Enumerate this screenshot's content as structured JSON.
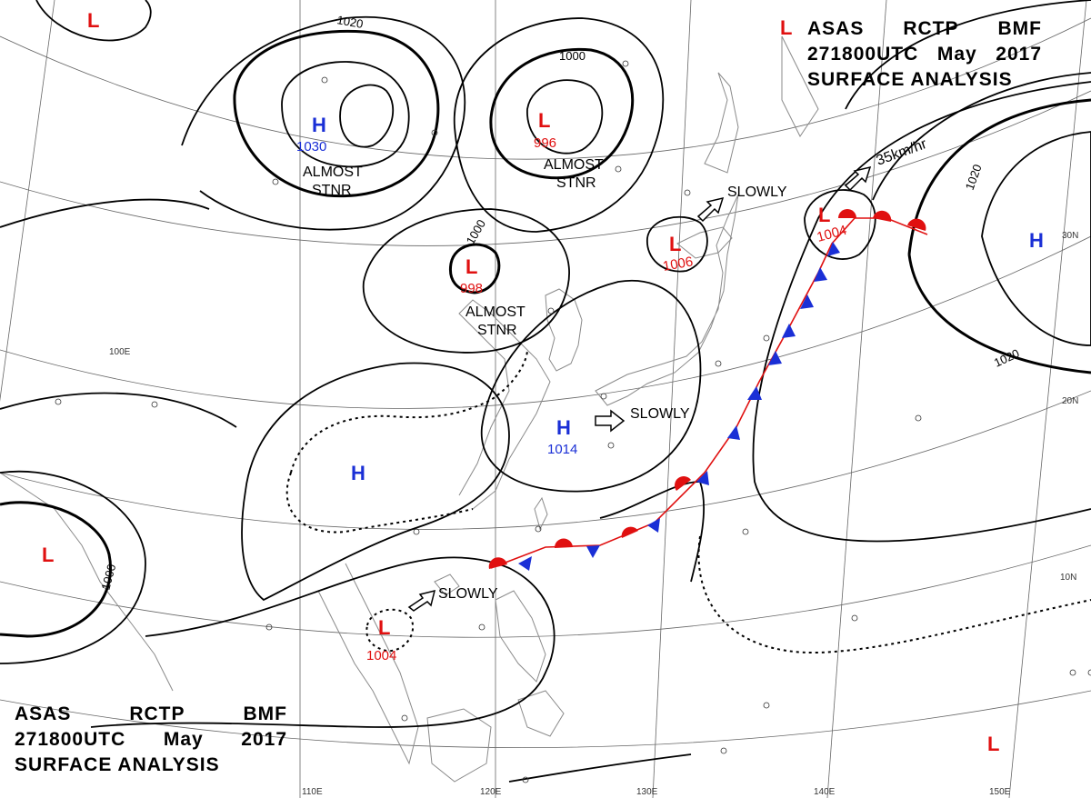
{
  "title_top": {
    "agency": "ASAS",
    "station": "RCTP",
    "office": "BMF",
    "time": "271800UTC",
    "month": "May",
    "year": "2017",
    "product": "SURFACE ANALYSIS"
  },
  "title_bottom": {
    "agency": "ASAS",
    "station": "RCTP",
    "office": "BMF",
    "time": "271800UTC",
    "month": "May",
    "year": "2017",
    "product": "SURFACE ANALYSIS"
  },
  "pressure_systems": [
    {
      "id": "h-mongolia",
      "type": "H",
      "value": "1030",
      "color": "#1a2fd6"
    },
    {
      "id": "h-china",
      "type": "H",
      "value": "",
      "color": "#1a2fd6"
    },
    {
      "id": "h-korea",
      "type": "H",
      "value": "1014",
      "color": "#1a2fd6"
    },
    {
      "id": "h-pacific",
      "type": "H",
      "value": "",
      "color": "#1a2fd6"
    },
    {
      "id": "l-northwest",
      "type": "L",
      "value": "",
      "color": "#e01010"
    },
    {
      "id": "l-manchuria",
      "type": "L",
      "value": "996",
      "color": "#e01010"
    },
    {
      "id": "l-bohai",
      "type": "L",
      "value": "998",
      "color": "#e01010"
    },
    {
      "id": "l-hokkaido",
      "type": "L",
      "value": "1006",
      "color": "#e01010"
    },
    {
      "id": "l-kuril",
      "type": "L",
      "value": "1004",
      "color": "#e01010"
    },
    {
      "id": "l-northeast",
      "type": "L",
      "value": "",
      "color": "#e01010"
    },
    {
      "id": "l-bay-bengal",
      "type": "L",
      "value": "",
      "color": "#e01010"
    },
    {
      "id": "l-south-china-sea",
      "type": "L",
      "value": "1004",
      "color": "#e01010"
    },
    {
      "id": "l-southeast",
      "type": "L",
      "value": "",
      "color": "#e01010"
    }
  ],
  "isobar_labels": [
    "1020",
    "1000",
    "1000",
    "1020",
    "1020",
    "1000"
  ],
  "motion_labels": [
    {
      "id": "almost-stnr-1",
      "line1": "ALMOST",
      "line2": "STNR"
    },
    {
      "id": "almost-stnr-2",
      "line1": "ALMOST",
      "line2": "STNR"
    },
    {
      "id": "almost-stnr-3",
      "line1": "ALMOST",
      "line2": "STNR"
    },
    {
      "id": "slowly-japan",
      "text": "SLOWLY"
    },
    {
      "id": "slowly-korea",
      "text": "SLOWLY"
    },
    {
      "id": "slowly-scs",
      "text": "SLOWLY"
    },
    {
      "id": "speed-kuril",
      "text": "35km/hr"
    }
  ],
  "lon_labels": [
    "100E",
    "110E",
    "120E",
    "130E",
    "140E",
    "150E"
  ],
  "lat_labels": [
    "30N",
    "20N",
    "10N"
  ],
  "colors": {
    "high": "#1a2fd6",
    "low": "#e01010",
    "warm_front": "#e01010",
    "cold_front": "#1a2fd6",
    "isobar": "#000000",
    "grid": "#555555",
    "coast": "#888888"
  }
}
